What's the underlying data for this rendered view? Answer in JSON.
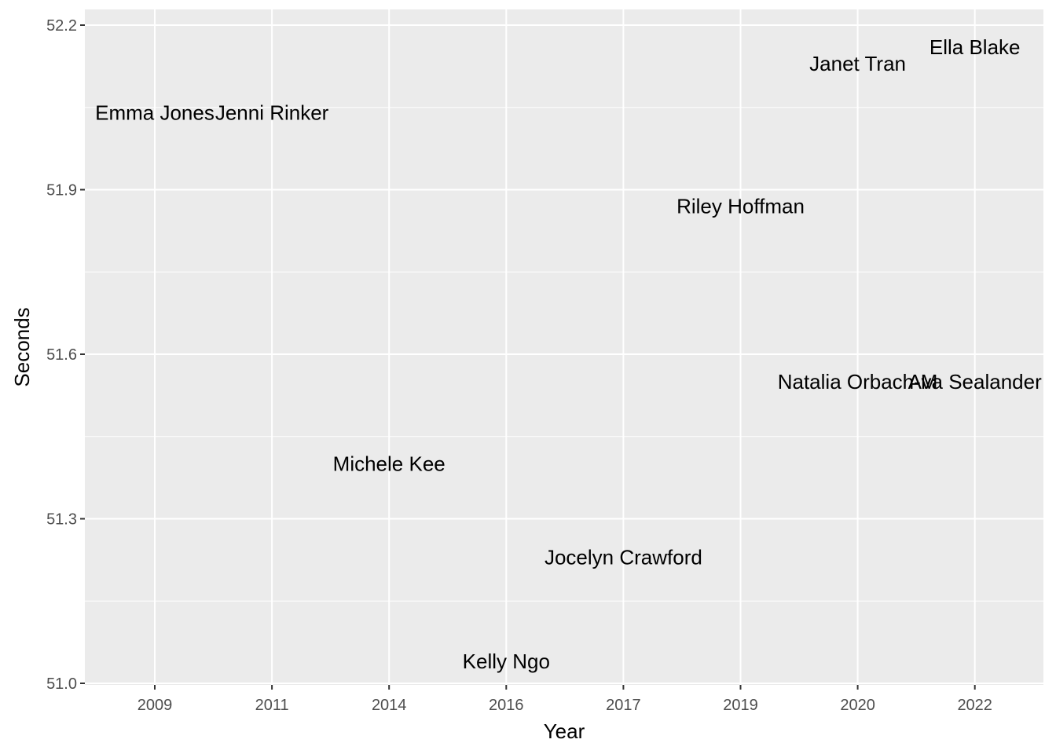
{
  "chart_data": {
    "type": "scatter",
    "title": "",
    "xlabel": "Year",
    "ylabel": "Seconds",
    "x_categories": [
      "2009",
      "2011",
      "2014",
      "2016",
      "2017",
      "2019",
      "2020",
      "2022"
    ],
    "ylim": [
      51.0,
      52.2
    ],
    "y_ticks": [
      "51.0",
      "51.3",
      "51.6",
      "51.9",
      "52.2"
    ],
    "grid": true,
    "panel_background": "#ebebeb",
    "points": [
      {
        "label": "Emma Jones",
        "x": "2009",
        "y": 52.04
      },
      {
        "label": "Jenni Rinker",
        "x": "2011",
        "y": 52.04
      },
      {
        "label": "Michele Kee",
        "x": "2014",
        "y": 51.4
      },
      {
        "label": "Kelly Ngo",
        "x": "2016",
        "y": 51.04
      },
      {
        "label": "Jocelyn Crawford",
        "x": "2017",
        "y": 51.23
      },
      {
        "label": "Riley Hoffman",
        "x": "2019",
        "y": 51.87
      },
      {
        "label": "Natalia Orbach-M",
        "x": "2020",
        "y": 51.55
      },
      {
        "label": "Janet Tran",
        "x": "2020",
        "y": 52.13
      },
      {
        "label": "Ava Sealander",
        "x": "2022",
        "y": 51.55
      },
      {
        "label": "Ella Blake",
        "x": "2022",
        "y": 52.16
      }
    ]
  }
}
